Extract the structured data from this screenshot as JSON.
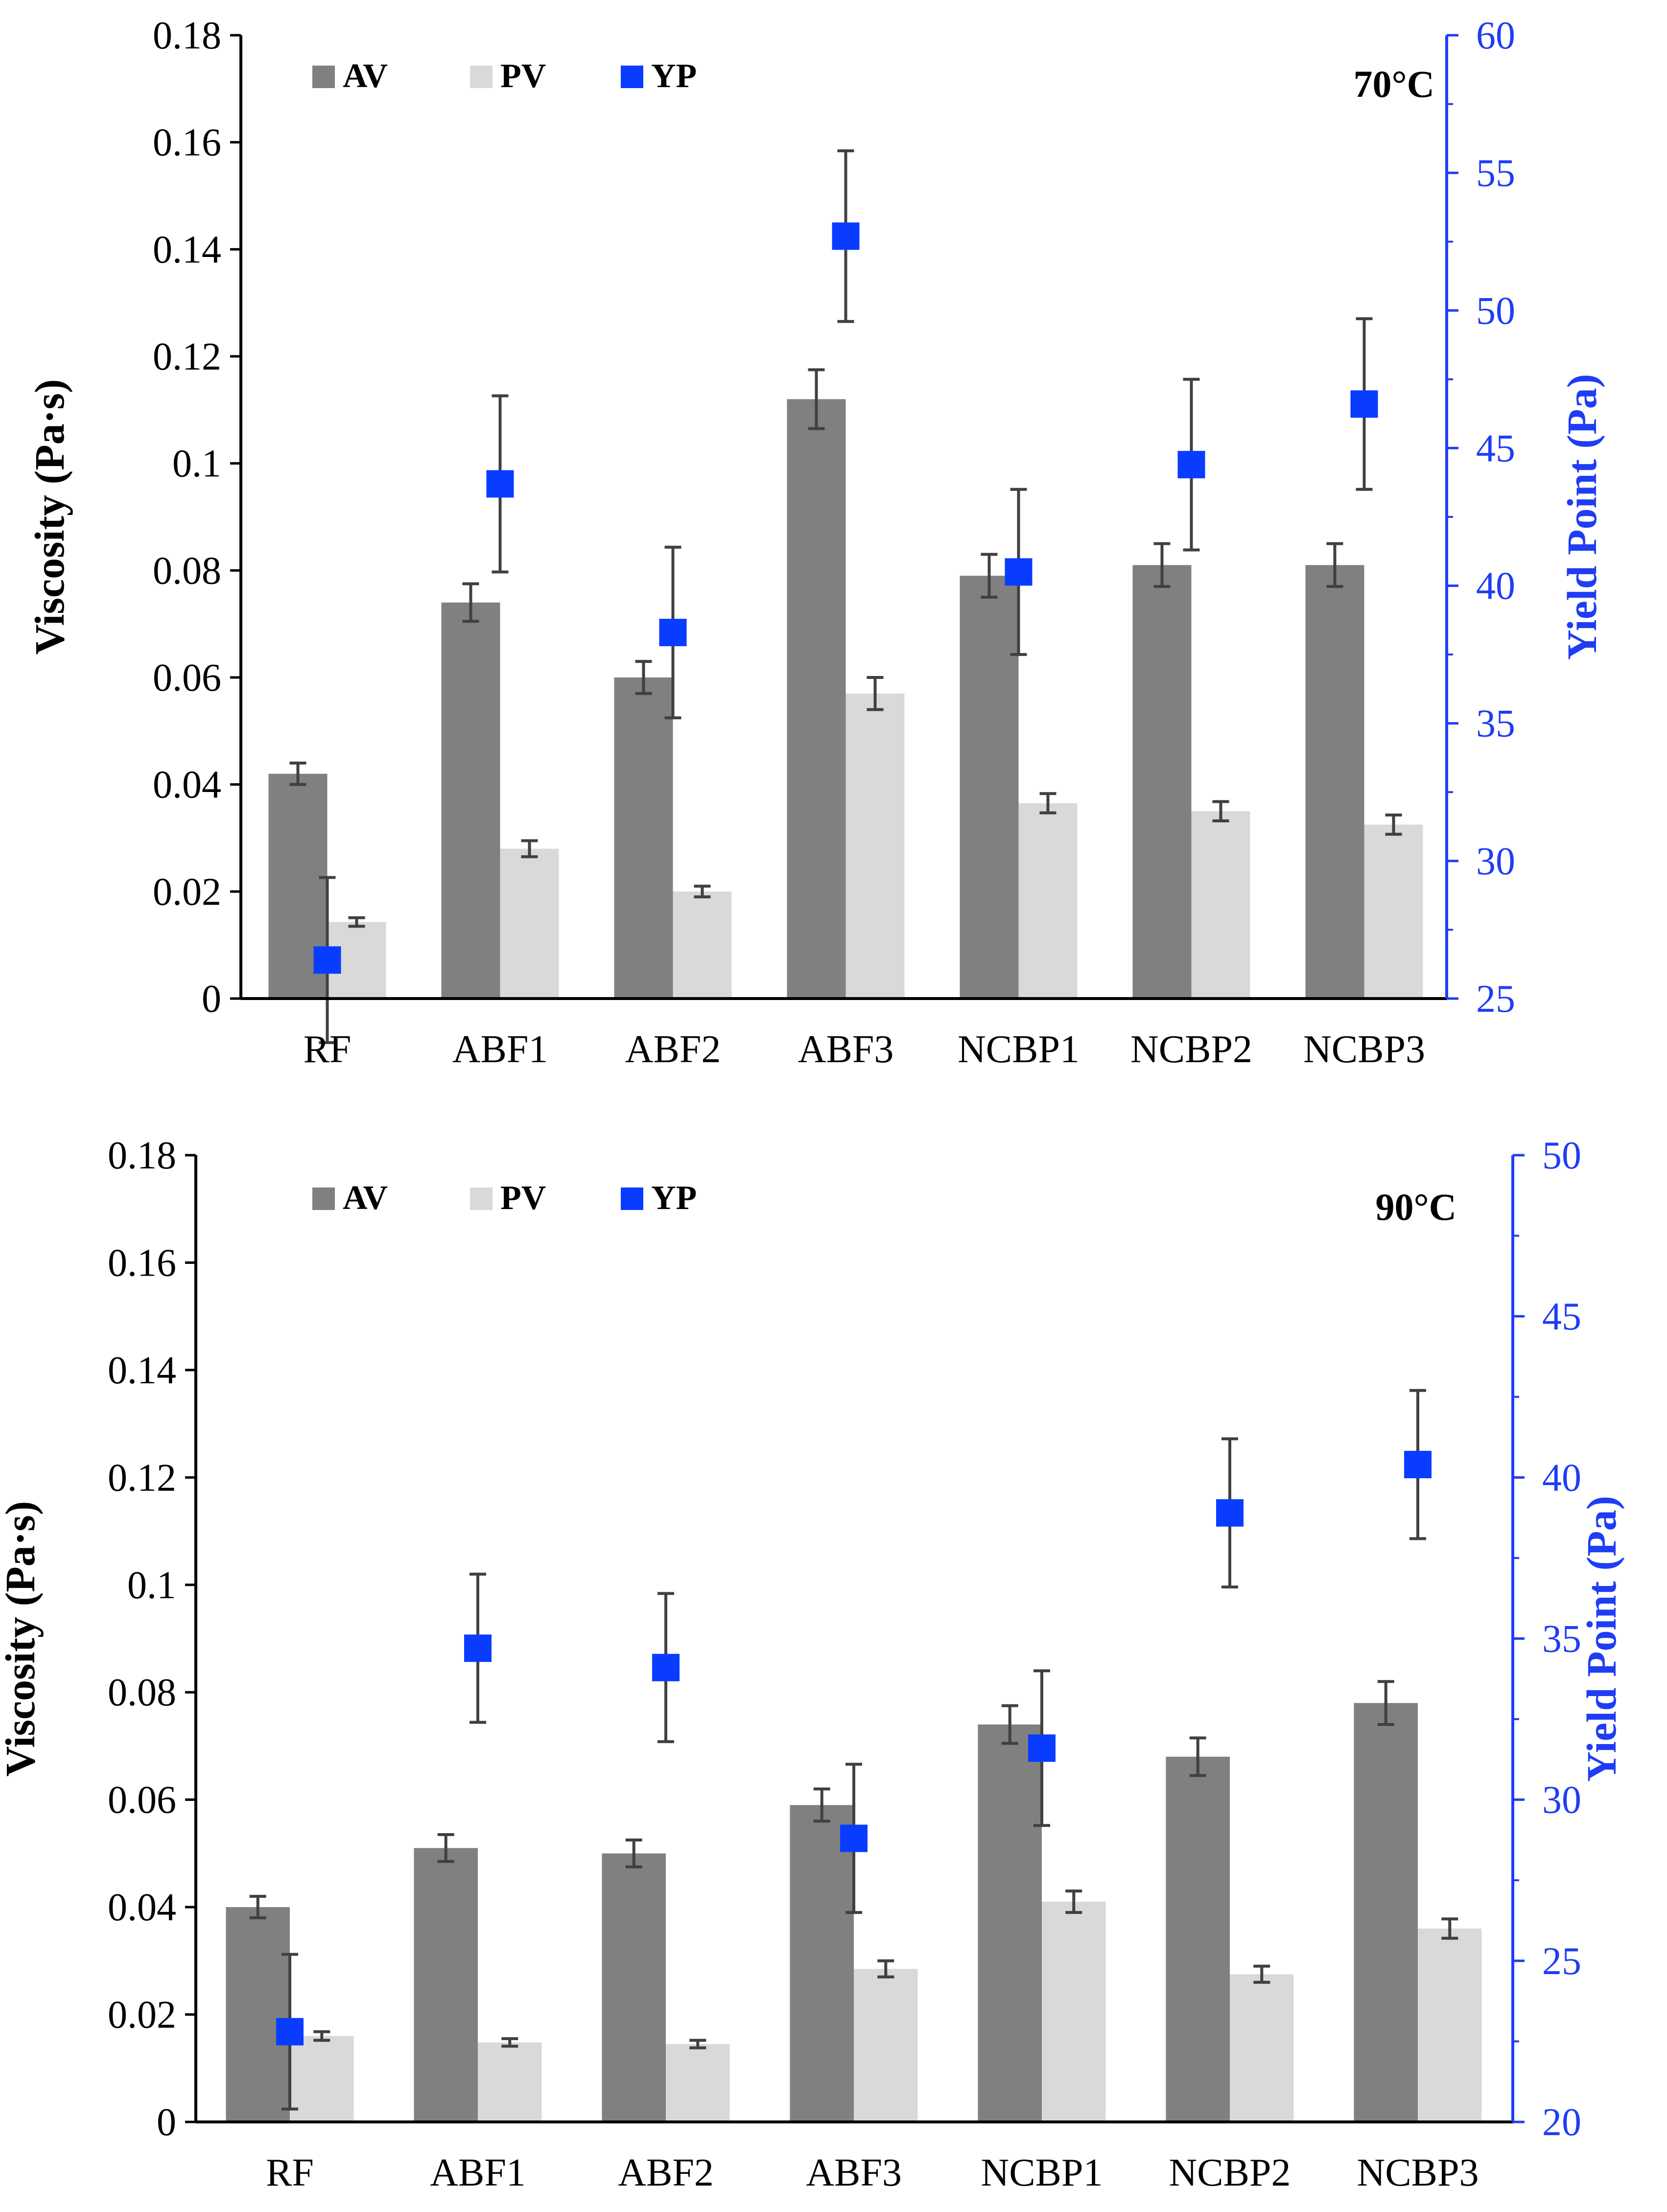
{
  "colors": {
    "av": "#808080",
    "pv": "#d9d9d9",
    "yp": "#0a3cff",
    "right_axis": "#1f3df5",
    "error": "#404040"
  },
  "chart_data": [
    {
      "type": "bar",
      "temperature": "70°C",
      "categories": [
        "RF",
        "ABF1",
        "ABF2",
        "ABF3",
        "NCBP1",
        "NCBP2",
        "NCBP3"
      ],
      "ylabel": "Viscosity (Pa·s)",
      "ylabel_right": "Yield Point (Pa)",
      "ylim": [
        0,
        0.18
      ],
      "yticks": [
        "0",
        "0.02",
        "0.04",
        "0.06",
        "0.08",
        "0.1",
        "0.12",
        "0.14",
        "0.16",
        "0.18"
      ],
      "ylim_right": [
        25,
        60
      ],
      "yticks_right": [
        "25",
        "30",
        "35",
        "40",
        "45",
        "50",
        "55",
        "60"
      ],
      "legend": [
        "AV",
        "PV",
        "YP"
      ],
      "series": [
        {
          "name": "AV",
          "kind": "bar",
          "axis": "left",
          "values": [
            0.042,
            0.074,
            0.06,
            0.112,
            0.079,
            0.081,
            0.081
          ],
          "errors": [
            0.002,
            0.0035,
            0.003,
            0.0055,
            0.004,
            0.004,
            0.004
          ]
        },
        {
          "name": "PV",
          "kind": "bar",
          "axis": "left",
          "values": [
            0.0143,
            0.028,
            0.02,
            0.057,
            0.0365,
            0.035,
            0.0325
          ],
          "errors": [
            0.0008,
            0.0015,
            0.001,
            0.003,
            0.0018,
            0.0018,
            0.0018
          ]
        },
        {
          "name": "YP",
          "kind": "scatter",
          "axis": "right",
          "values": [
            26.4,
            43.7,
            38.3,
            52.7,
            40.5,
            44.4,
            46.6
          ],
          "errors": [
            3.0,
            3.2,
            3.1,
            3.1,
            3.0,
            3.1,
            3.1
          ]
        }
      ]
    },
    {
      "type": "bar",
      "temperature": "90°C",
      "categories": [
        "RF",
        "ABF1",
        "ABF2",
        "ABF3",
        "NCBP1",
        "NCBP2",
        "NCBP3"
      ],
      "ylabel": "Viscosity (Pa·s)",
      "ylabel_right": "Yield Point (Pa)",
      "ylim": [
        0,
        0.18
      ],
      "yticks": [
        "0",
        "0.02",
        "0.04",
        "0.06",
        "0.08",
        "0.1",
        "0.12",
        "0.14",
        "0.16",
        "0.18"
      ],
      "ylim_right": [
        20,
        50
      ],
      "yticks_right": [
        "20",
        "25",
        "30",
        "35",
        "40",
        "45",
        "50"
      ],
      "legend": [
        "AV",
        "PV",
        "YP"
      ],
      "series": [
        {
          "name": "AV",
          "kind": "bar",
          "axis": "left",
          "values": [
            0.04,
            0.051,
            0.05,
            0.059,
            0.074,
            0.068,
            0.078
          ],
          "errors": [
            0.002,
            0.0025,
            0.0025,
            0.003,
            0.0035,
            0.0035,
            0.004
          ]
        },
        {
          "name": "PV",
          "kind": "bar",
          "axis": "left",
          "values": [
            0.016,
            0.0148,
            0.0145,
            0.0285,
            0.041,
            0.0275,
            0.036
          ],
          "errors": [
            0.0008,
            0.0007,
            0.0007,
            0.0015,
            0.002,
            0.0015,
            0.0018
          ]
        },
        {
          "name": "YP",
          "kind": "scatter",
          "axis": "right",
          "values": [
            22.8,
            34.7,
            34.1,
            28.8,
            31.6,
            38.9,
            40.4
          ],
          "errors": [
            2.4,
            2.3,
            2.3,
            2.3,
            2.4,
            2.3,
            2.3
          ]
        }
      ]
    }
  ]
}
